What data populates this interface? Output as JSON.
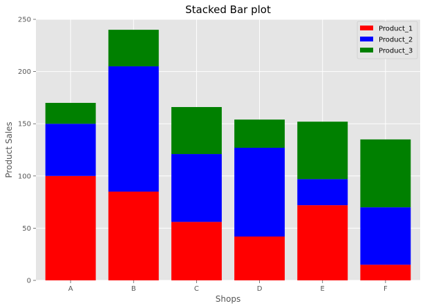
{
  "chart_data": {
    "type": "bar",
    "stacked": true,
    "title": "Stacked Bar plot",
    "xlabel": "Shops",
    "ylabel": "Product Sales",
    "categories": [
      "A",
      "B",
      "C",
      "D",
      "E",
      "F"
    ],
    "series": [
      {
        "name": "Product_1",
        "color": "#ff0000",
        "values": [
          100,
          85,
          56,
          42,
          72,
          15
        ]
      },
      {
        "name": "Product_2",
        "color": "#0000ff",
        "values": [
          50,
          120,
          65,
          85,
          25,
          55
        ]
      },
      {
        "name": "Product_3",
        "color": "#008000",
        "values": [
          20,
          35,
          45,
          27,
          55,
          65
        ]
      }
    ],
    "ylim": [
      0,
      250
    ],
    "yticks": [
      0,
      50,
      100,
      150,
      200,
      250
    ],
    "grid": true,
    "legend_position": "top-right",
    "background_color": "#e5e5e5",
    "grid_color": "#ffffff"
  }
}
